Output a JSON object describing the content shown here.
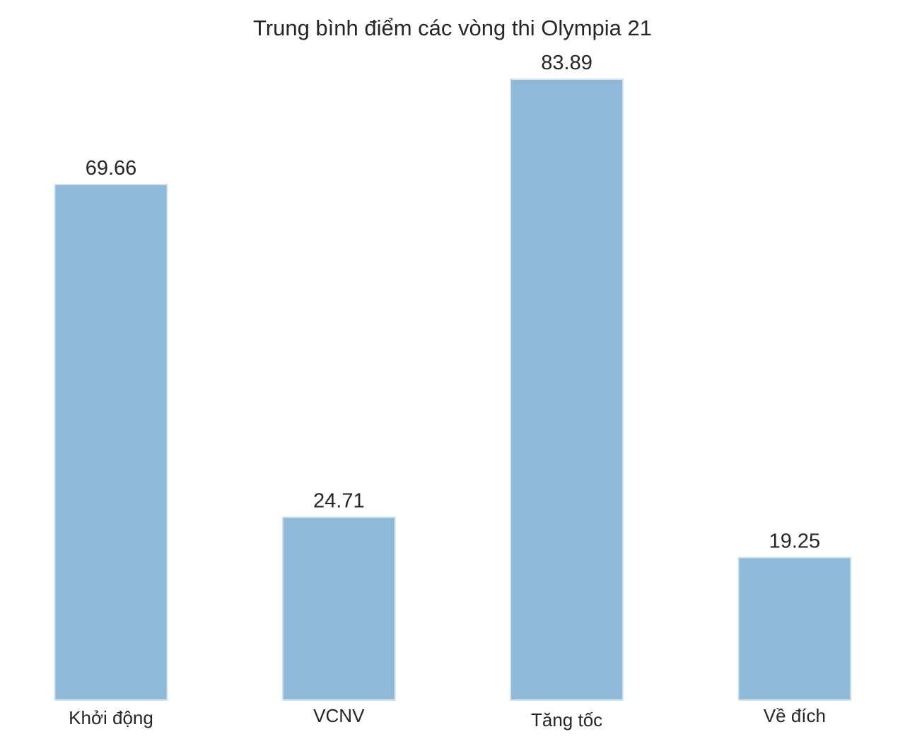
{
  "chart_data": {
    "type": "bar",
    "title": "Trung bình điểm các vòng thi Olympia 21",
    "categories": [
      "Khởi động",
      "VCNV",
      "Tăng tốc",
      "Về đích"
    ],
    "values": [
      69.66,
      24.71,
      83.89,
      19.25
    ],
    "value_labels": [
      "69.66",
      "24.71",
      "83.89",
      "19.25"
    ],
    "xlabel": "",
    "ylabel": "",
    "ylim": [
      0,
      83.89
    ],
    "grid": false,
    "legend": "none",
    "colors": {
      "bar_fill": "#8fb9d9",
      "bar_edge": "#d3e4f1",
      "text": "#262626",
      "background": "#ffffff"
    }
  }
}
